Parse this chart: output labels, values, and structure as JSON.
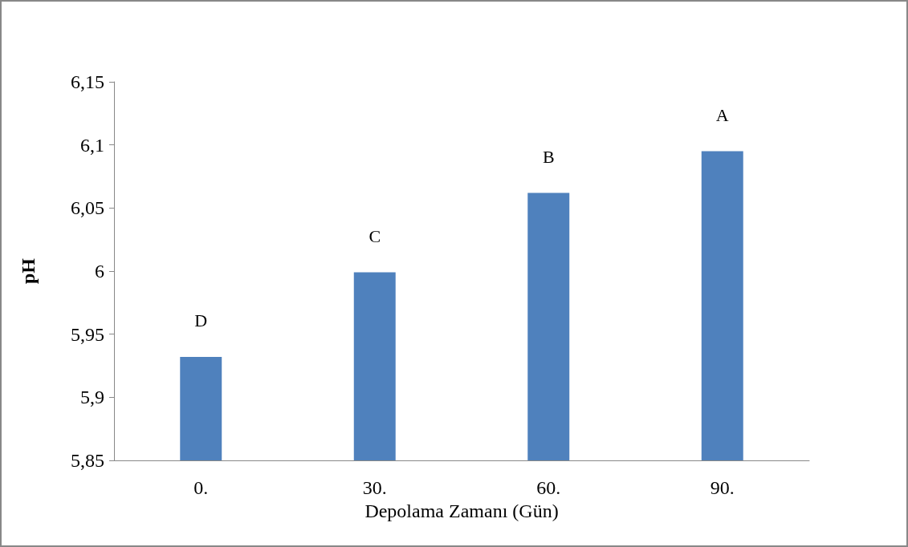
{
  "chart_data": {
    "type": "bar",
    "xlabel": "Depolama Zamanı (Gün)",
    "ylabel": "pH",
    "categories": [
      "0.",
      "30.",
      "60.",
      "90."
    ],
    "values": [
      5.932,
      5.999,
      6.062,
      6.095
    ],
    "color": "#4f81bd",
    "ylim": [
      5.85,
      6.15
    ],
    "yticks": [
      {
        "value": 5.85,
        "label": "5,85"
      },
      {
        "value": 5.9,
        "label": "5,9"
      },
      {
        "value": 5.95,
        "label": "5,95"
      },
      6,
      {
        "value": 6.05,
        "label": "6,05"
      },
      {
        "value": 6.1,
        "label": "6,1"
      },
      {
        "value": 6.15,
        "label": "6,15"
      }
    ],
    "annotations": [
      {
        "text": "D",
        "x": "0.",
        "y": 5.932
      },
      {
        "text": "C",
        "x": "30.",
        "y": 5.999
      },
      {
        "text": "B",
        "x": "60.",
        "y": 6.062
      },
      {
        "text": "A",
        "x": "90.",
        "y": 6.095
      }
    ],
    "grid": false
  }
}
